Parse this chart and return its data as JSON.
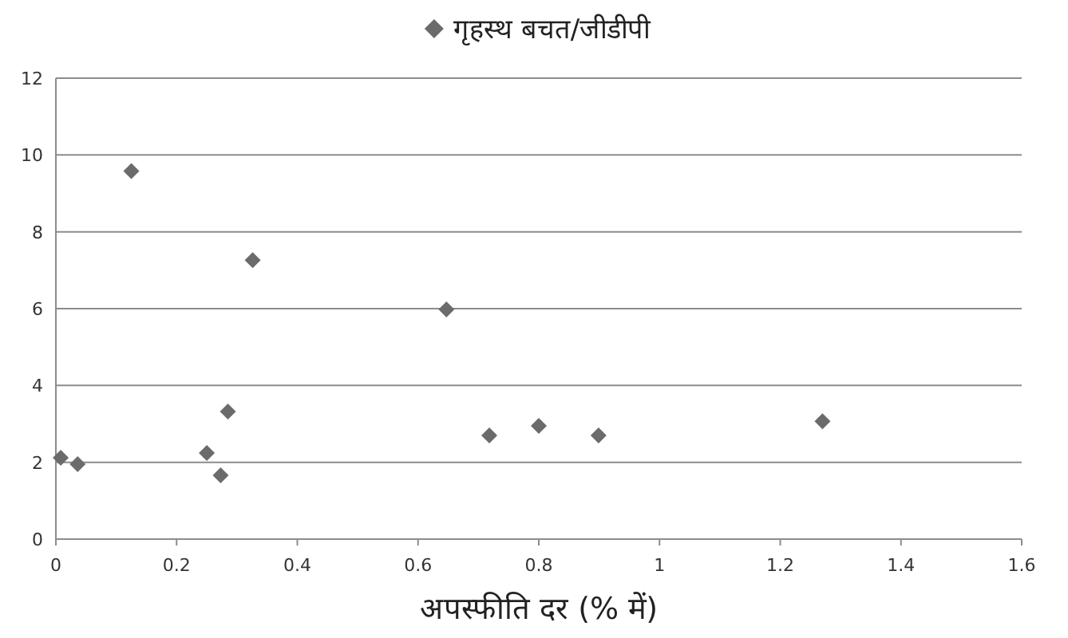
{
  "chart_data": {
    "type": "scatter",
    "xlabel": "अपस्फीति दर (% में)",
    "xlim": [
      0,
      1.6
    ],
    "xticks": [
      0,
      0.2,
      0.4,
      0.6,
      0.8,
      1,
      1.2,
      1.4,
      1.6
    ],
    "ylim": [
      0,
      12
    ],
    "yticks": [
      0,
      2,
      4,
      6,
      8,
      10,
      12
    ],
    "grid": "y",
    "legend": "top",
    "marker": "diamond",
    "series": [
      {
        "name": "गृहस्थ बचत/जीडीपी",
        "color": "#6b6b6b",
        "x": [
          0.008,
          0.036,
          0.125,
          0.25,
          0.273,
          0.285,
          0.326,
          0.647,
          0.718,
          0.8,
          0.899,
          1.27
        ],
        "values": [
          2.12,
          1.95,
          9.58,
          2.24,
          1.66,
          3.32,
          7.26,
          5.98,
          2.7,
          2.95,
          2.7,
          3.07
        ]
      }
    ]
  }
}
